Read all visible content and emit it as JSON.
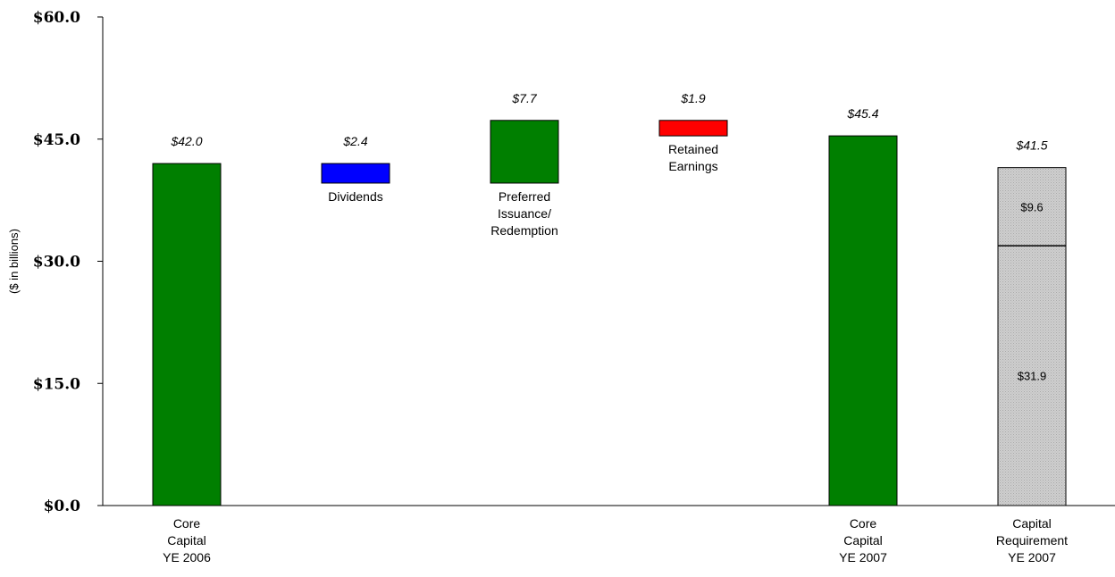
{
  "chart_data": {
    "type": "bar",
    "ylabel": "($ in billions)",
    "ylim": [
      0,
      60
    ],
    "yticks": [
      "$0.0",
      "$15.0",
      "$30.0",
      "$45.0",
      "$60.0"
    ],
    "ytick_values": [
      0,
      15,
      30,
      45,
      60
    ],
    "grid": false,
    "bars": [
      {
        "id": "core-2006",
        "category": [
          "Core",
          "Capital",
          "YE 2006"
        ],
        "bottom": 0,
        "top": 42.0,
        "value_label": "$42.0",
        "color": "#007f00"
      },
      {
        "id": "dividends",
        "category": [
          "Dividends"
        ],
        "bottom": 39.6,
        "top": 42.0,
        "value_label": "$2.4",
        "color": "#0000ff"
      },
      {
        "id": "preferred",
        "category": [
          "Preferred",
          "Issuance/",
          "Redemption"
        ],
        "bottom": 39.6,
        "top": 47.3,
        "value_label": "$7.7",
        "color": "#007f00"
      },
      {
        "id": "retained",
        "category": [
          "Retained",
          "Earnings"
        ],
        "bottom": 45.4,
        "top": 47.3,
        "value_label": "$1.9",
        "color": "#ff0000"
      },
      {
        "id": "core-2007",
        "category": [
          "Core",
          "Capital",
          "YE 2007"
        ],
        "bottom": 0,
        "top": 45.4,
        "value_label": "$45.4",
        "color": "#007f00"
      },
      {
        "id": "requirement-2007",
        "category": [
          "Capital",
          "Requirement",
          "YE 2007"
        ],
        "bottom": 0,
        "top": 41.5,
        "value_label": "$41.5",
        "color": "#c8c8c8",
        "segments": [
          {
            "value": 31.9,
            "label": "$31.9"
          },
          {
            "value": 9.6,
            "label": "$9.6"
          }
        ]
      }
    ]
  }
}
